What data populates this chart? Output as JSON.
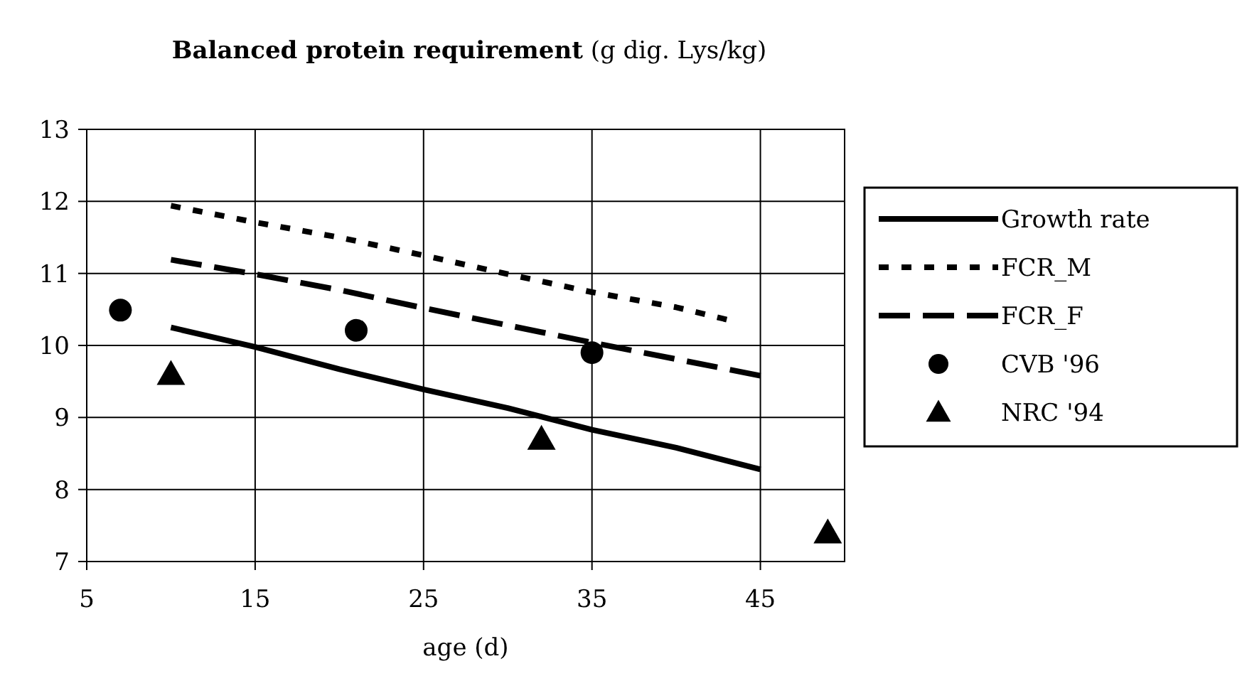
{
  "chart_data": {
    "type": "line",
    "title": "Balanced protein requirement",
    "subtitle": "(g dig. Lys/kg)",
    "xlabel": "age (d)",
    "xlim": [
      5,
      50
    ],
    "xticks": [
      5,
      15,
      25,
      35,
      45
    ],
    "ylim": [
      7,
      13
    ],
    "yticks": [
      7,
      8,
      9,
      10,
      11,
      12,
      13
    ],
    "grid": true,
    "legend": "right",
    "series": [
      {
        "name": "Growth rate",
        "color": "#000000",
        "line_style": "solid",
        "marker": "none",
        "x": [
          10,
          15,
          20,
          25,
          30,
          35,
          40,
          45
        ],
        "values": [
          10.25,
          9.98,
          9.67,
          9.39,
          9.13,
          8.83,
          8.58,
          8.28
        ]
      },
      {
        "name": "FCR_M",
        "color": "#000000",
        "line_style": "dotted",
        "marker": "none",
        "x": [
          10,
          15,
          20,
          25,
          30,
          35,
          40,
          43
        ],
        "values": [
          11.94,
          11.71,
          11.5,
          11.25,
          10.99,
          10.74,
          10.53,
          10.36
        ]
      },
      {
        "name": "FCR_F",
        "color": "#000000",
        "line_style": "dashed",
        "marker": "none",
        "x": [
          10,
          15,
          20,
          25,
          30,
          35,
          40,
          45
        ],
        "values": [
          11.19,
          10.99,
          10.77,
          10.52,
          10.28,
          10.04,
          9.81,
          9.58
        ]
      },
      {
        "name": "CVB '96",
        "type": "scatter",
        "color": "#000000",
        "marker": "circle",
        "x": [
          7,
          21,
          35
        ],
        "values": [
          10.49,
          10.21,
          9.9
        ]
      },
      {
        "name": "NRC '94",
        "type": "scatter",
        "color": "#000000",
        "marker": "triangle",
        "x": [
          10,
          32,
          49
        ],
        "values": [
          9.6,
          8.7,
          7.4
        ]
      }
    ]
  }
}
